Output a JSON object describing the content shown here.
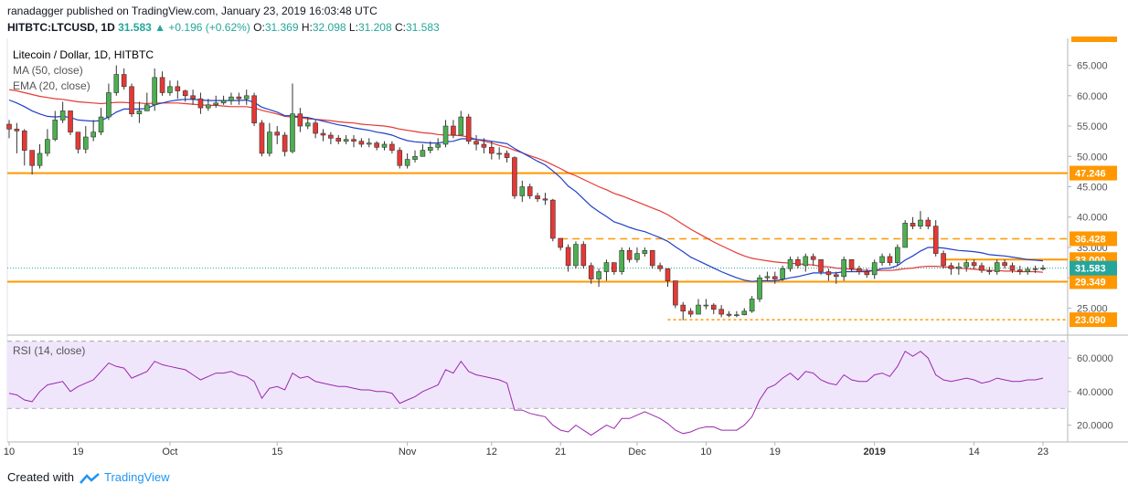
{
  "header": {
    "author": "ranadagger",
    "published_text": "published on TradingView.com, January 23, 2019 16:03:48 UTC",
    "symbol": "HITBTC:LTCUSD, 1D",
    "last": "31.583",
    "change": "+0.196 (+0.62%)",
    "o_label": "O:",
    "o_value": "31.369",
    "h_label": "H:",
    "h_value": "32.098",
    "l_label": "L:",
    "l_value": "31.208",
    "c_label": "C:",
    "c_value": "31.583"
  },
  "chart_data": {
    "type": "candlestick",
    "title": "Litecoin / Dollar, 1D, HITBTC",
    "indicators": [
      "MA (50, close)",
      "EMA (20, close)"
    ],
    "ylim": [
      21,
      69
    ],
    "price_ticks": [
      25,
      30,
      35,
      40,
      45,
      50,
      55,
      60,
      65
    ],
    "price_tick_labels": [
      "25.000",
      "30.000",
      "35.000",
      "40.000",
      "45.000",
      "50.000",
      "55.000",
      "60.000",
      "65.000"
    ],
    "x_tick_labels": [
      {
        "day": 0,
        "label": "10"
      },
      {
        "day": 9,
        "label": "19"
      },
      {
        "day": 21,
        "label": "Oct"
      },
      {
        "day": 35,
        "label": "15"
      },
      {
        "day": 52,
        "label": "Nov"
      },
      {
        "day": 63,
        "label": "12"
      },
      {
        "day": 72,
        "label": "21"
      },
      {
        "day": 82,
        "label": "Dec"
      },
      {
        "day": 91,
        "label": "10"
      },
      {
        "day": 100,
        "label": "19"
      },
      {
        "day": 113,
        "label": "2019"
      },
      {
        "day": 126,
        "label": "14"
      },
      {
        "day": 135,
        "label": "23"
      }
    ],
    "levels": [
      {
        "value": 47.246,
        "label": "47.246",
        "style": "solid",
        "start_day": 0
      },
      {
        "value": 36.428,
        "label": "36.428",
        "style": "dashed",
        "start_day": 72
      },
      {
        "value": 33.0,
        "label": "33.000",
        "style": "solid",
        "start_day": 122
      },
      {
        "value": 29.349,
        "label": "29.349",
        "style": "solid",
        "start_day": 0
      },
      {
        "value": 23.09,
        "label": "23.090",
        "style": "dotted",
        "start_day": 86
      }
    ],
    "current_price": {
      "value": 31.583,
      "label": "31.583"
    },
    "close": [
      54.5,
      54.2,
      51.0,
      48.5,
      50.5,
      52.8,
      56.0,
      57.5,
      54.0,
      51.2,
      53.2,
      54.0,
      56.5,
      60.5,
      63.5,
      61.5,
      57.0,
      57.5,
      58.5,
      63.0,
      60.5,
      61.5,
      60.8,
      60.0,
      59.5,
      58.0,
      58.5,
      58.8,
      59.2,
      59.8,
      59.5,
      60.0,
      55.5,
      50.5,
      54.0,
      53.5,
      50.8,
      57.0,
      55.0,
      55.5,
      53.8,
      53.5,
      53.0,
      52.5,
      52.8,
      52.5,
      52.0,
      52.2,
      51.5,
      52.0,
      51.0,
      48.5,
      49.5,
      50.0,
      51.0,
      51.5,
      52.0,
      55.0,
      53.5,
      56.5,
      52.5,
      52.0,
      51.5,
      50.5,
      50.5,
      49.8,
      43.5,
      45.0,
      43.5,
      43.0,
      42.8,
      36.5,
      35.0,
      32.0,
      35.5,
      32.0,
      29.8,
      31.0,
      32.5,
      31.0,
      34.5,
      33.0,
      34.0,
      34.5,
      32.0,
      31.5,
      29.5,
      25.5,
      24.5,
      24.0,
      25.5,
      25.5,
      24.8,
      24.0,
      23.8,
      23.9,
      24.5,
      26.5,
      30.0,
      30.2,
      29.8,
      31.5,
      33.0,
      32.0,
      33.5,
      33.0,
      31.0,
      30.5,
      30.2,
      33.0,
      31.5,
      31.0,
      30.5,
      32.5,
      33.5,
      32.5,
      35.0,
      39.0,
      38.5,
      39.5,
      38.5,
      34.0,
      32.0,
      31.5,
      31.8,
      32.5,
      32.0,
      31.2,
      31.0,
      32.5,
      32.0,
      31.3,
      31.0,
      31.4,
      31.5,
      31.583
    ],
    "high": [
      56.0,
      55.5,
      54.5,
      50.5,
      52.0,
      54.5,
      57.5,
      59.0,
      57.0,
      53.0,
      55.0,
      56.0,
      58.0,
      62.0,
      65.0,
      64.5,
      62.0,
      59.0,
      60.5,
      64.5,
      64.0,
      62.5,
      62.5,
      61.0,
      61.0,
      60.5,
      59.5,
      60.0,
      60.0,
      60.5,
      60.5,
      61.0,
      60.5,
      56.0,
      55.5,
      55.0,
      54.0,
      62.0,
      58.0,
      56.5,
      56.0,
      54.5,
      54.0,
      53.5,
      53.5,
      53.5,
      53.0,
      53.0,
      52.5,
      52.5,
      52.5,
      51.5,
      50.5,
      51.0,
      52.0,
      52.5,
      53.0,
      56.0,
      56.0,
      57.5,
      57.0,
      53.5,
      53.0,
      52.5,
      51.5,
      51.0,
      50.0,
      46.0,
      45.5,
      44.0,
      44.0,
      43.0,
      36.5,
      35.5,
      36.0,
      36.0,
      32.5,
      31.5,
      33.0,
      32.5,
      35.0,
      35.0,
      35.0,
      35.0,
      34.5,
      32.5,
      31.5,
      29.5,
      26.0,
      25.0,
      26.5,
      26.5,
      25.8,
      25.5,
      24.5,
      24.5,
      25.0,
      27.0,
      30.5,
      31.0,
      31.0,
      32.0,
      33.5,
      33.5,
      34.0,
      34.0,
      33.0,
      31.5,
      31.0,
      33.5,
      33.0,
      32.0,
      31.5,
      33.0,
      34.0,
      34.0,
      35.5,
      39.5,
      40.0,
      41.0,
      40.0,
      39.5,
      34.5,
      32.5,
      32.5,
      33.0,
      33.0,
      32.5,
      31.8,
      33.0,
      33.0,
      32.5,
      32.0,
      31.8,
      32.0,
      32.098
    ],
    "low": [
      53.0,
      50.5,
      48.5,
      47.0,
      48.0,
      50.0,
      52.5,
      55.5,
      53.5,
      50.5,
      50.5,
      52.5,
      53.5,
      56.0,
      60.0,
      61.0,
      56.5,
      55.5,
      57.5,
      57.5,
      60.0,
      60.0,
      59.5,
      59.0,
      58.5,
      57.0,
      57.5,
      58.0,
      58.5,
      58.5,
      58.5,
      58.5,
      55.0,
      50.0,
      50.0,
      52.0,
      50.0,
      50.5,
      54.0,
      54.5,
      53.0,
      52.5,
      52.0,
      52.0,
      52.0,
      51.5,
      51.5,
      51.5,
      51.0,
      51.0,
      50.5,
      48.0,
      48.0,
      49.0,
      50.0,
      50.5,
      51.0,
      51.5,
      53.0,
      53.5,
      52.0,
      51.0,
      50.5,
      49.5,
      49.5,
      49.0,
      43.0,
      42.5,
      43.0,
      42.5,
      42.0,
      36.0,
      34.5,
      31.0,
      31.5,
      31.5,
      29.0,
      28.5,
      29.5,
      30.5,
      30.5,
      32.5,
      32.5,
      33.5,
      31.5,
      31.0,
      28.5,
      25.0,
      23.0,
      23.5,
      24.0,
      24.8,
      24.0,
      23.5,
      23.5,
      23.5,
      23.8,
      24.2,
      26.0,
      29.5,
      29.0,
      29.5,
      31.0,
      31.5,
      31.0,
      32.0,
      30.5,
      29.5,
      29.0,
      29.5,
      31.0,
      30.5,
      30.0,
      29.8,
      32.0,
      32.0,
      32.0,
      35.0,
      38.0,
      38.0,
      38.0,
      33.5,
      31.5,
      30.5,
      30.5,
      31.0,
      31.5,
      30.8,
      30.5,
      30.5,
      31.5,
      30.8,
      30.5,
      30.5,
      30.8,
      31.208
    ],
    "ema20": [
      59.3,
      58.8,
      58.2,
      57.5,
      57.0,
      56.6,
      56.5,
      56.6,
      56.4,
      56.0,
      55.9,
      55.8,
      55.9,
      56.5,
      57.3,
      57.8,
      57.8,
      57.8,
      57.9,
      58.5,
      58.8,
      59.1,
      59.3,
      59.4,
      59.4,
      59.3,
      59.2,
      59.2,
      59.2,
      59.2,
      59.2,
      59.3,
      58.9,
      58.1,
      57.7,
      57.3,
      56.7,
      56.7,
      56.5,
      56.4,
      56.1,
      55.8,
      55.5,
      55.2,
      55.0,
      54.7,
      54.5,
      54.3,
      54.0,
      53.8,
      53.5,
      53.0,
      52.6,
      52.4,
      52.3,
      52.2,
      52.2,
      52.4,
      52.5,
      52.9,
      52.9,
      52.8,
      52.7,
      52.5,
      52.3,
      52.1,
      51.3,
      50.6,
      49.9,
      49.2,
      48.6,
      47.6,
      46.5,
      45.1,
      44.2,
      43.0,
      41.8,
      40.9,
      40.1,
      39.2,
      38.8,
      38.3,
      37.9,
      37.6,
      37.1,
      36.6,
      36.0,
      35.1,
      34.3,
      33.4,
      32.8,
      32.2,
      31.6,
      31.0,
      30.5,
      30.0,
      29.6,
      29.4,
      29.5,
      29.5,
      29.5,
      29.7,
      30.0,
      30.2,
      30.5,
      30.8,
      30.8,
      30.8,
      30.8,
      31.0,
      31.0,
      31.0,
      31.0,
      31.2,
      31.5,
      31.6,
      32.0,
      32.9,
      33.6,
      34.4,
      35.0,
      35.0,
      34.9,
      34.7,
      34.5,
      34.4,
      34.3,
      34.1,
      33.8,
      33.7,
      33.6,
      33.4,
      33.2,
      33.0,
      32.9,
      32.8
    ],
    "ma50": [
      61.0,
      60.8,
      60.5,
      60.2,
      59.9,
      59.7,
      59.5,
      59.4,
      59.2,
      59.0,
      58.9,
      58.8,
      58.7,
      58.8,
      58.9,
      58.9,
      58.8,
      58.8,
      58.7,
      58.8,
      58.8,
      58.8,
      58.8,
      58.7,
      58.6,
      58.5,
      58.4,
      58.4,
      58.3,
      58.2,
      58.2,
      58.2,
      58.0,
      57.6,
      57.3,
      57.0,
      56.6,
      56.5,
      56.4,
      56.2,
      56.1,
      56.0,
      55.9,
      55.7,
      55.6,
      55.5,
      55.3,
      55.2,
      55.1,
      55.0,
      54.8,
      54.5,
      54.3,
      54.1,
      53.9,
      53.8,
      53.6,
      53.5,
      53.5,
      53.4,
      53.2,
      52.8,
      52.5,
      52.2,
      51.8,
      51.5,
      51.0,
      50.6,
      50.1,
      49.7,
      49.2,
      48.6,
      48.0,
      47.3,
      46.8,
      46.2,
      45.6,
      45.0,
      44.5,
      43.9,
      43.5,
      43.0,
      42.5,
      42.0,
      41.5,
      41.0,
      40.4,
      39.6,
      38.8,
      38.0,
      37.3,
      36.6,
      35.9,
      35.3,
      34.7,
      34.1,
      33.6,
      33.2,
      33.0,
      32.8,
      32.6,
      32.5,
      32.4,
      32.3,
      32.2,
      32.1,
      31.9,
      31.8,
      31.6,
      31.5,
      31.4,
      31.3,
      31.2,
      31.2,
      31.2,
      31.2,
      31.3,
      31.5,
      31.6,
      31.8,
      31.9,
      31.9,
      31.8,
      31.7,
      31.6,
      31.5,
      31.4,
      31.3,
      31.2,
      31.2,
      31.1,
      31.1,
      31.0,
      31.0,
      31.0,
      30.9
    ],
    "rsi": {
      "title": "RSI (14, close)",
      "ylim": [
        10,
        72
      ],
      "ticks": [
        20,
        40,
        60
      ],
      "tick_labels": [
        "20.0000",
        "40.0000",
        "60.0000"
      ],
      "bands": [
        30,
        70
      ],
      "values": [
        39,
        38,
        35,
        34,
        40,
        44,
        45,
        46,
        40,
        43,
        45,
        47,
        52,
        57,
        55,
        54,
        48,
        50,
        52,
        58,
        56,
        55,
        54,
        53,
        50,
        47,
        49,
        51,
        51,
        52,
        50,
        49,
        46,
        36,
        42,
        43,
        41,
        51,
        48,
        49,
        46,
        45,
        44,
        43,
        43,
        42,
        41,
        41,
        40,
        40,
        39,
        33,
        35,
        37,
        40,
        42,
        44,
        53,
        51,
        58,
        52,
        50,
        49,
        48,
        47,
        45,
        29,
        29,
        27,
        26,
        25,
        20,
        17,
        16,
        20,
        17,
        14,
        17,
        20,
        18,
        24,
        24,
        26,
        28,
        26,
        24,
        21,
        17,
        15,
        16,
        18,
        19,
        19,
        17,
        17,
        17,
        20,
        25,
        35,
        42,
        44,
        48,
        51,
        47,
        52,
        51,
        47,
        45,
        44,
        50,
        47,
        46,
        46,
        50,
        51,
        49,
        55,
        64,
        61,
        64,
        60,
        50,
        47,
        46,
        47,
        48,
        47,
        45,
        46,
        48,
        47,
        46,
        46,
        47,
        47,
        48
      ]
    },
    "x_range_days": [
      0,
      135
    ]
  },
  "footer": {
    "created_with": "Created with",
    "brand": "TradingView"
  }
}
